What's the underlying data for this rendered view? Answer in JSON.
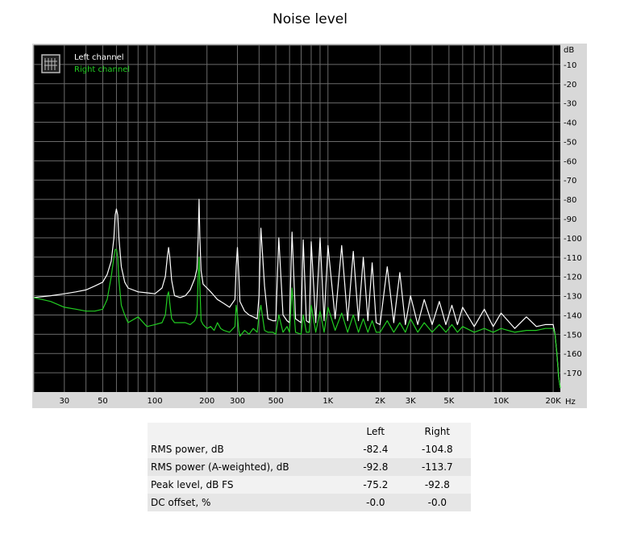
{
  "title": "Noise level",
  "chart_data": {
    "type": "line",
    "title": "Noise level",
    "x_scale": "log",
    "xlabel": "Hz",
    "ylabel": "dB",
    "xlim": [
      20,
      22000
    ],
    "ylim": [
      -180,
      0
    ],
    "grid": true,
    "background": "#000000",
    "legend_position": "top-left",
    "x_ticks": [
      {
        "value": 30,
        "label": "30"
      },
      {
        "value": 50,
        "label": "50"
      },
      {
        "value": 100,
        "label": "100"
      },
      {
        "value": 200,
        "label": "200"
      },
      {
        "value": 300,
        "label": "300"
      },
      {
        "value": 500,
        "label": "500"
      },
      {
        "value": 1000,
        "label": "1K"
      },
      {
        "value": 2000,
        "label": "2K"
      },
      {
        "value": 3000,
        "label": "3K"
      },
      {
        "value": 5000,
        "label": "5K"
      },
      {
        "value": 10000,
        "label": "10K"
      },
      {
        "value": 20000,
        "label": "20K"
      }
    ],
    "y_ticks": [
      {
        "value": 0,
        "label": "dB"
      },
      {
        "value": -10,
        "label": "-10"
      },
      {
        "value": -20,
        "label": "-20"
      },
      {
        "value": -30,
        "label": "-30"
      },
      {
        "value": -40,
        "label": "-40"
      },
      {
        "value": -50,
        "label": "-50"
      },
      {
        "value": -60,
        "label": "-60"
      },
      {
        "value": -70,
        "label": "-70"
      },
      {
        "value": -80,
        "label": "-80"
      },
      {
        "value": -90,
        "label": "-90"
      },
      {
        "value": -100,
        "label": "-100"
      },
      {
        "value": -110,
        "label": "-110"
      },
      {
        "value": -120,
        "label": "-120"
      },
      {
        "value": -130,
        "label": "-130"
      },
      {
        "value": -140,
        "label": "-140"
      },
      {
        "value": -150,
        "label": "-150"
      },
      {
        "value": -160,
        "label": "-160"
      },
      {
        "value": -170,
        "label": "-170"
      }
    ],
    "series": [
      {
        "name": "Left channel",
        "color": "#ffffff",
        "x": [
          20,
          25,
          30,
          35,
          40,
          45,
          50,
          53,
          56,
          58,
          59,
          60,
          61,
          62,
          64,
          67,
          70,
          80,
          90,
          100,
          110,
          115,
          118,
          120,
          122,
          125,
          130,
          140,
          150,
          160,
          170,
          175,
          178,
          180,
          182,
          185,
          190,
          200,
          210,
          220,
          230,
          240,
          250,
          270,
          290,
          295,
          300,
          305,
          310,
          330,
          350,
          370,
          390,
          400,
          410,
          430,
          450,
          480,
          500,
          520,
          550,
          580,
          600,
          620,
          650,
          700,
          720,
          750,
          780,
          800,
          850,
          900,
          950,
          1000,
          1100,
          1200,
          1300,
          1400,
          1500,
          1600,
          1700,
          1800,
          1900,
          2000,
          2200,
          2400,
          2600,
          2800,
          3000,
          3300,
          3600,
          4000,
          4400,
          4800,
          5200,
          5600,
          6000,
          7000,
          8000,
          9000,
          10000,
          12000,
          14000,
          16000,
          18000,
          19000,
          20000,
          20500,
          21000,
          21500,
          22000
        ],
        "y": [
          -131,
          -130,
          -129,
          -128,
          -127,
          -125,
          -123,
          -119,
          -112,
          -100,
          -88,
          -85,
          -88,
          -100,
          -115,
          -123,
          -126,
          -128,
          -128.5,
          -129,
          -126,
          -120,
          -110,
          -105,
          -110,
          -122,
          -130,
          -131,
          -130,
          -127,
          -121,
          -116,
          -100,
          -80,
          -100,
          -117,
          -124,
          -126,
          -128,
          -130,
          -132,
          -133,
          -134,
          -136,
          -132,
          -115,
          -105,
          -118,
          -133,
          -138,
          -140,
          -141,
          -142,
          -130,
          -95,
          -125,
          -142,
          -143,
          -143,
          -100,
          -140,
          -143,
          -144,
          -97,
          -142,
          -144,
          -101,
          -143,
          -144,
          -102,
          -144,
          -100,
          -143,
          -104,
          -142,
          -104,
          -143,
          -107,
          -143,
          -110,
          -143,
          -113,
          -144,
          -145,
          -115,
          -144,
          -118,
          -145,
          -130,
          -145,
          -132,
          -145,
          -133,
          -145,
          -135,
          -145,
          -136,
          -146,
          -137,
          -146,
          -139,
          -147,
          -141,
          -146,
          -145,
          -145,
          -145,
          -150,
          -160,
          -172,
          -178
        ]
      },
      {
        "name": "Right channel",
        "color": "#22cc22",
        "x": [
          20,
          25,
          30,
          35,
          40,
          45,
          50,
          53,
          56,
          58,
          59,
          60,
          61,
          62,
          64,
          67,
          70,
          80,
          90,
          100,
          110,
          115,
          118,
          120,
          122,
          125,
          130,
          140,
          150,
          160,
          170,
          175,
          178,
          180,
          182,
          185,
          190,
          200,
          210,
          220,
          230,
          240,
          250,
          270,
          290,
          295,
          300,
          305,
          310,
          330,
          350,
          370,
          390,
          400,
          410,
          430,
          450,
          480,
          500,
          520,
          550,
          580,
          600,
          620,
          650,
          700,
          720,
          750,
          780,
          800,
          850,
          900,
          950,
          1000,
          1100,
          1200,
          1300,
          1400,
          1500,
          1600,
          1700,
          1800,
          1900,
          2000,
          2200,
          2400,
          2600,
          2800,
          3000,
          3300,
          3600,
          4000,
          4400,
          4800,
          5200,
          5600,
          6000,
          7000,
          8000,
          9000,
          10000,
          12000,
          14000,
          16000,
          18000,
          19000,
          20000,
          20500,
          21000,
          21500,
          22000
        ],
        "y": [
          -131,
          -133,
          -136,
          -137,
          -138,
          -138,
          -137,
          -132,
          -120,
          -110,
          -106,
          -106,
          -110,
          -122,
          -135,
          -140,
          -144,
          -141,
          -146,
          -145,
          -144,
          -140,
          -130,
          -128,
          -134,
          -142,
          -144,
          -144,
          -144,
          -145,
          -143,
          -140,
          -120,
          -110,
          -125,
          -143,
          -145,
          -147,
          -146,
          -148,
          -144,
          -147,
          -148,
          -149,
          -146,
          -135,
          -140,
          -148,
          -151,
          -148,
          -150,
          -147,
          -149,
          -140,
          -135,
          -148,
          -149,
          -149,
          -150,
          -140,
          -149,
          -146,
          -149,
          -126,
          -149,
          -150,
          -140,
          -149,
          -149,
          -135,
          -149,
          -138,
          -149,
          -136,
          -148,
          -139,
          -149,
          -140,
          -149,
          -142,
          -149,
          -143,
          -149,
          -149,
          -143,
          -149,
          -144,
          -149,
          -142,
          -149,
          -144,
          -149,
          -145,
          -149,
          -145,
          -149,
          -146,
          -149,
          -147,
          -149,
          -147,
          -149,
          -148,
          -148,
          -147,
          -147,
          -147,
          -150,
          -160,
          -172,
          -178
        ]
      }
    ]
  },
  "table": {
    "headers": [
      "",
      "Left",
      "Right"
    ],
    "rows": [
      {
        "label": "RMS power, dB",
        "left": "-82.4",
        "right": "-104.8"
      },
      {
        "label": "RMS power (A-weighted), dB",
        "left": "-92.8",
        "right": "-113.7"
      },
      {
        "label": "Peak level, dB FS",
        "left": "-75.2",
        "right": "-92.8"
      },
      {
        "label": "DC offset, %",
        "left": "-0.0",
        "right": "-0.0"
      }
    ]
  }
}
